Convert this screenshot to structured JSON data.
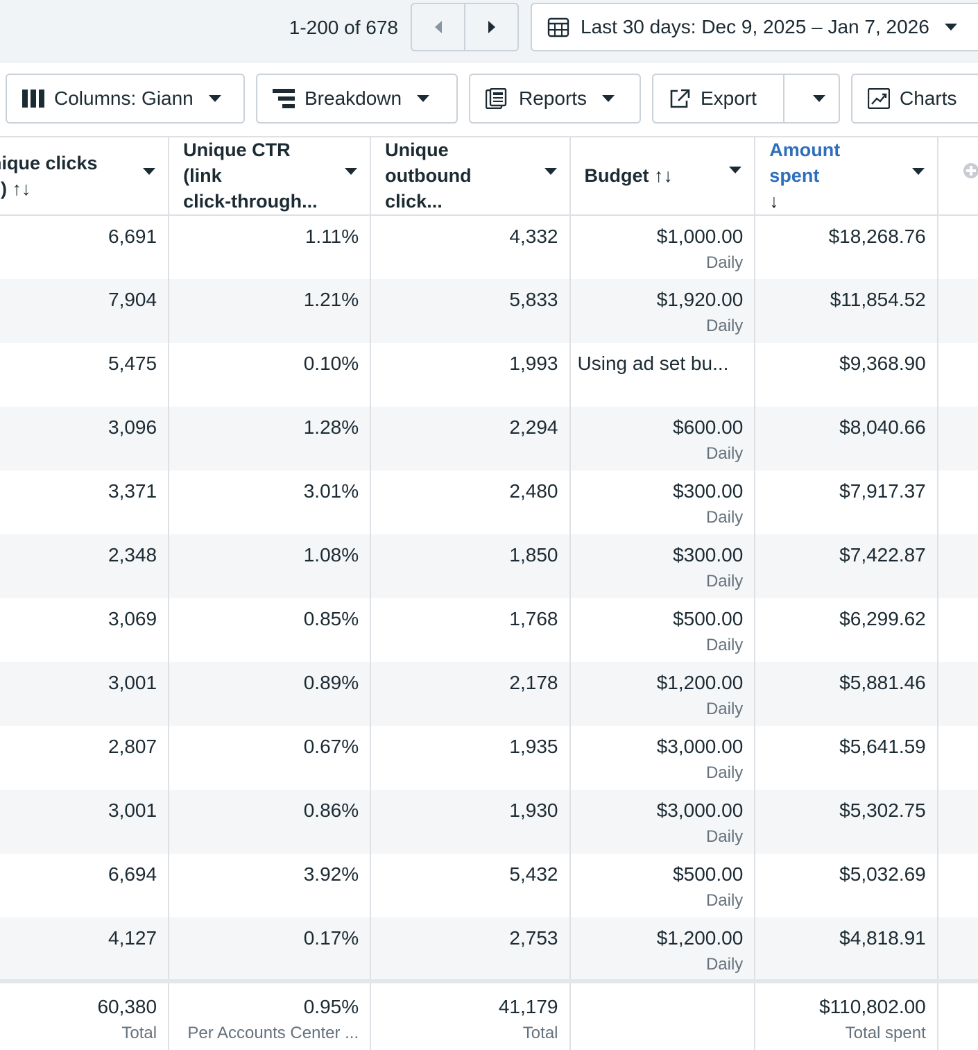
{
  "pagination": {
    "range_text": "1-200 of 678"
  },
  "date_range": {
    "label": "Last 30 days: Dec 9, 2025 – Jan 7, 2026"
  },
  "toolbar": {
    "columns_label": "Columns: Giann",
    "breakdown_label": "Breakdown",
    "reports_label": "Reports",
    "export_label": "Export",
    "charts_label": "Charts"
  },
  "table": {
    "headers": {
      "unique_clicks": "nique clicks",
      "unique_clicks_2": "ll) ↑↓",
      "unique_ctr": "Unique CTR (link",
      "unique_ctr_2": "click-through...",
      "outbound": "Unique",
      "outbound_2": "outbound click...",
      "budget": "Budget ↑↓",
      "amount_spent": "Amount spent",
      "amount_spent_2": "↓"
    },
    "rows": [
      {
        "clicks": "6,691",
        "ctr": "1.11%",
        "outbound": "4,332",
        "budget": "$1,000.00",
        "budget_sub": "Daily",
        "spent": "$18,268.76"
      },
      {
        "clicks": "7,904",
        "ctr": "1.21%",
        "outbound": "5,833",
        "budget": "$1,920.00",
        "budget_sub": "Daily",
        "spent": "$11,854.52"
      },
      {
        "clicks": "5,475",
        "ctr": "0.10%",
        "outbound": "1,993",
        "budget": "Using ad set bu...",
        "budget_sub": "",
        "spent": "$9,368.90"
      },
      {
        "clicks": "3,096",
        "ctr": "1.28%",
        "outbound": "2,294",
        "budget": "$600.00",
        "budget_sub": "Daily",
        "spent": "$8,040.66"
      },
      {
        "clicks": "3,371",
        "ctr": "3.01%",
        "outbound": "2,480",
        "budget": "$300.00",
        "budget_sub": "Daily",
        "spent": "$7,917.37"
      },
      {
        "clicks": "2,348",
        "ctr": "1.08%",
        "outbound": "1,850",
        "budget": "$300.00",
        "budget_sub": "Daily",
        "spent": "$7,422.87"
      },
      {
        "clicks": "3,069",
        "ctr": "0.85%",
        "outbound": "1,768",
        "budget": "$500.00",
        "budget_sub": "Daily",
        "spent": "$6,299.62"
      },
      {
        "clicks": "3,001",
        "ctr": "0.89%",
        "outbound": "2,178",
        "budget": "$1,200.00",
        "budget_sub": "Daily",
        "spent": "$5,881.46"
      },
      {
        "clicks": "2,807",
        "ctr": "0.67%",
        "outbound": "1,935",
        "budget": "$3,000.00",
        "budget_sub": "Daily",
        "spent": "$5,641.59"
      },
      {
        "clicks": "3,001",
        "ctr": "0.86%",
        "outbound": "1,930",
        "budget": "$3,000.00",
        "budget_sub": "Daily",
        "spent": "$5,302.75"
      },
      {
        "clicks": "6,694",
        "ctr": "3.92%",
        "outbound": "5,432",
        "budget": "$500.00",
        "budget_sub": "Daily",
        "spent": "$5,032.69"
      },
      {
        "clicks": "4,127",
        "ctr": "0.17%",
        "outbound": "2,753",
        "budget": "$1,200.00",
        "budget_sub": "Daily",
        "spent": "$4,818.91"
      }
    ],
    "totals": {
      "clicks": "60,380",
      "clicks_sub": "Total",
      "ctr": "0.95%",
      "ctr_sub": "Per Accounts Center ...",
      "outbound": "41,179",
      "outbound_sub": "Total",
      "spent": "$110,802.00",
      "spent_sub": "Total spent"
    }
  },
  "colors": {
    "accent": "#2d6fbd",
    "text": "#1c2b33",
    "muted": "#65717c",
    "border": "#dde1e5",
    "zebra": "#f5f6f8"
  }
}
